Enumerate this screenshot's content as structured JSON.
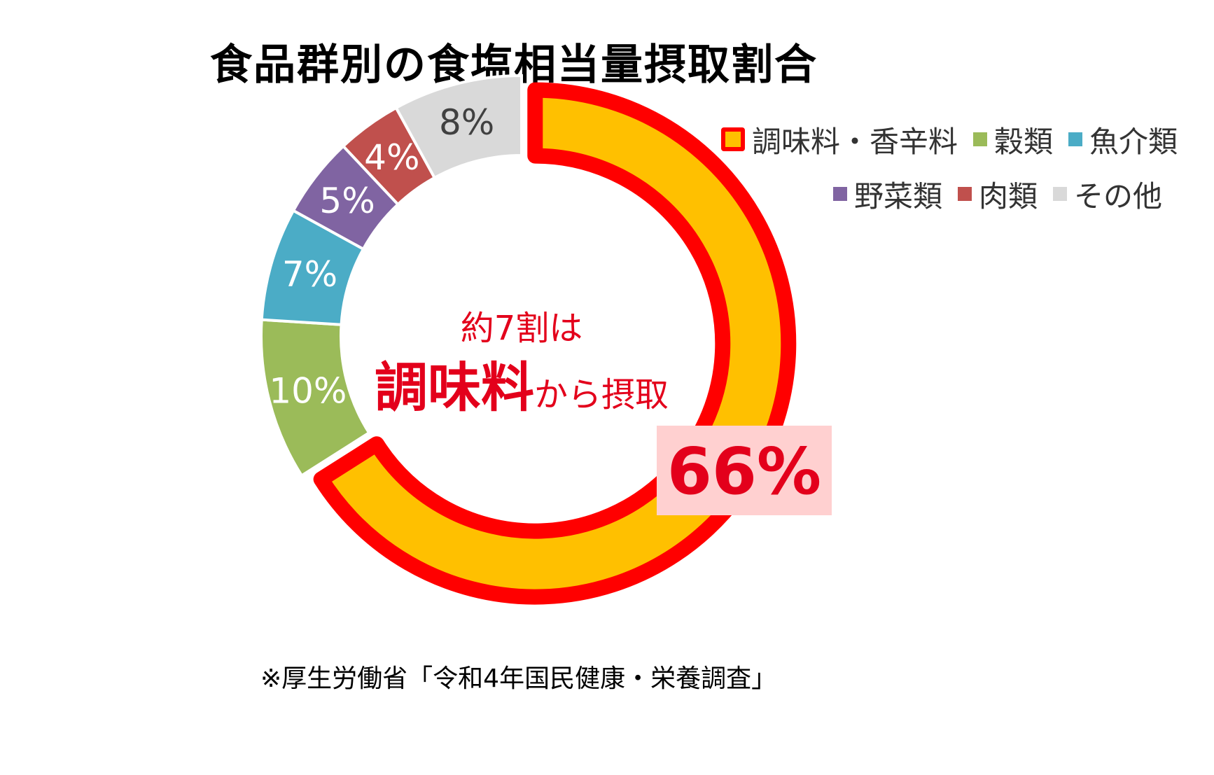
{
  "title": "食品群別の食塩相当量摂取割合",
  "chart_data": {
    "type": "pie",
    "title": "食品群別の食塩相当量摂取割合",
    "categories": [
      "調味料・香辛料",
      "穀類",
      "魚介類",
      "野菜類",
      "肉類",
      "その他"
    ],
    "values": [
      66,
      10,
      7,
      5,
      4,
      8
    ],
    "labels": [
      "66%",
      "10%",
      "7%",
      "5%",
      "4%",
      "8%"
    ],
    "colors": [
      "#ffc000",
      "#9bbb59",
      "#4bacc6",
      "#8064a2",
      "#c0504d",
      "#d9d9d9"
    ],
    "label_colors": [
      "#e3001b",
      "#ffffff",
      "#ffffff",
      "#ffffff",
      "#ffffff",
      "#404040"
    ],
    "highlight_series": "調味料・香辛料",
    "highlight_stroke": "#ff0000",
    "legend_position": "top-right"
  },
  "center_text": {
    "line1": "約7割は",
    "line2_bold": "調味料",
    "line2_rest": "から摂取"
  },
  "source": "※厚生労働省「令和4年国民健康・栄養調査」"
}
